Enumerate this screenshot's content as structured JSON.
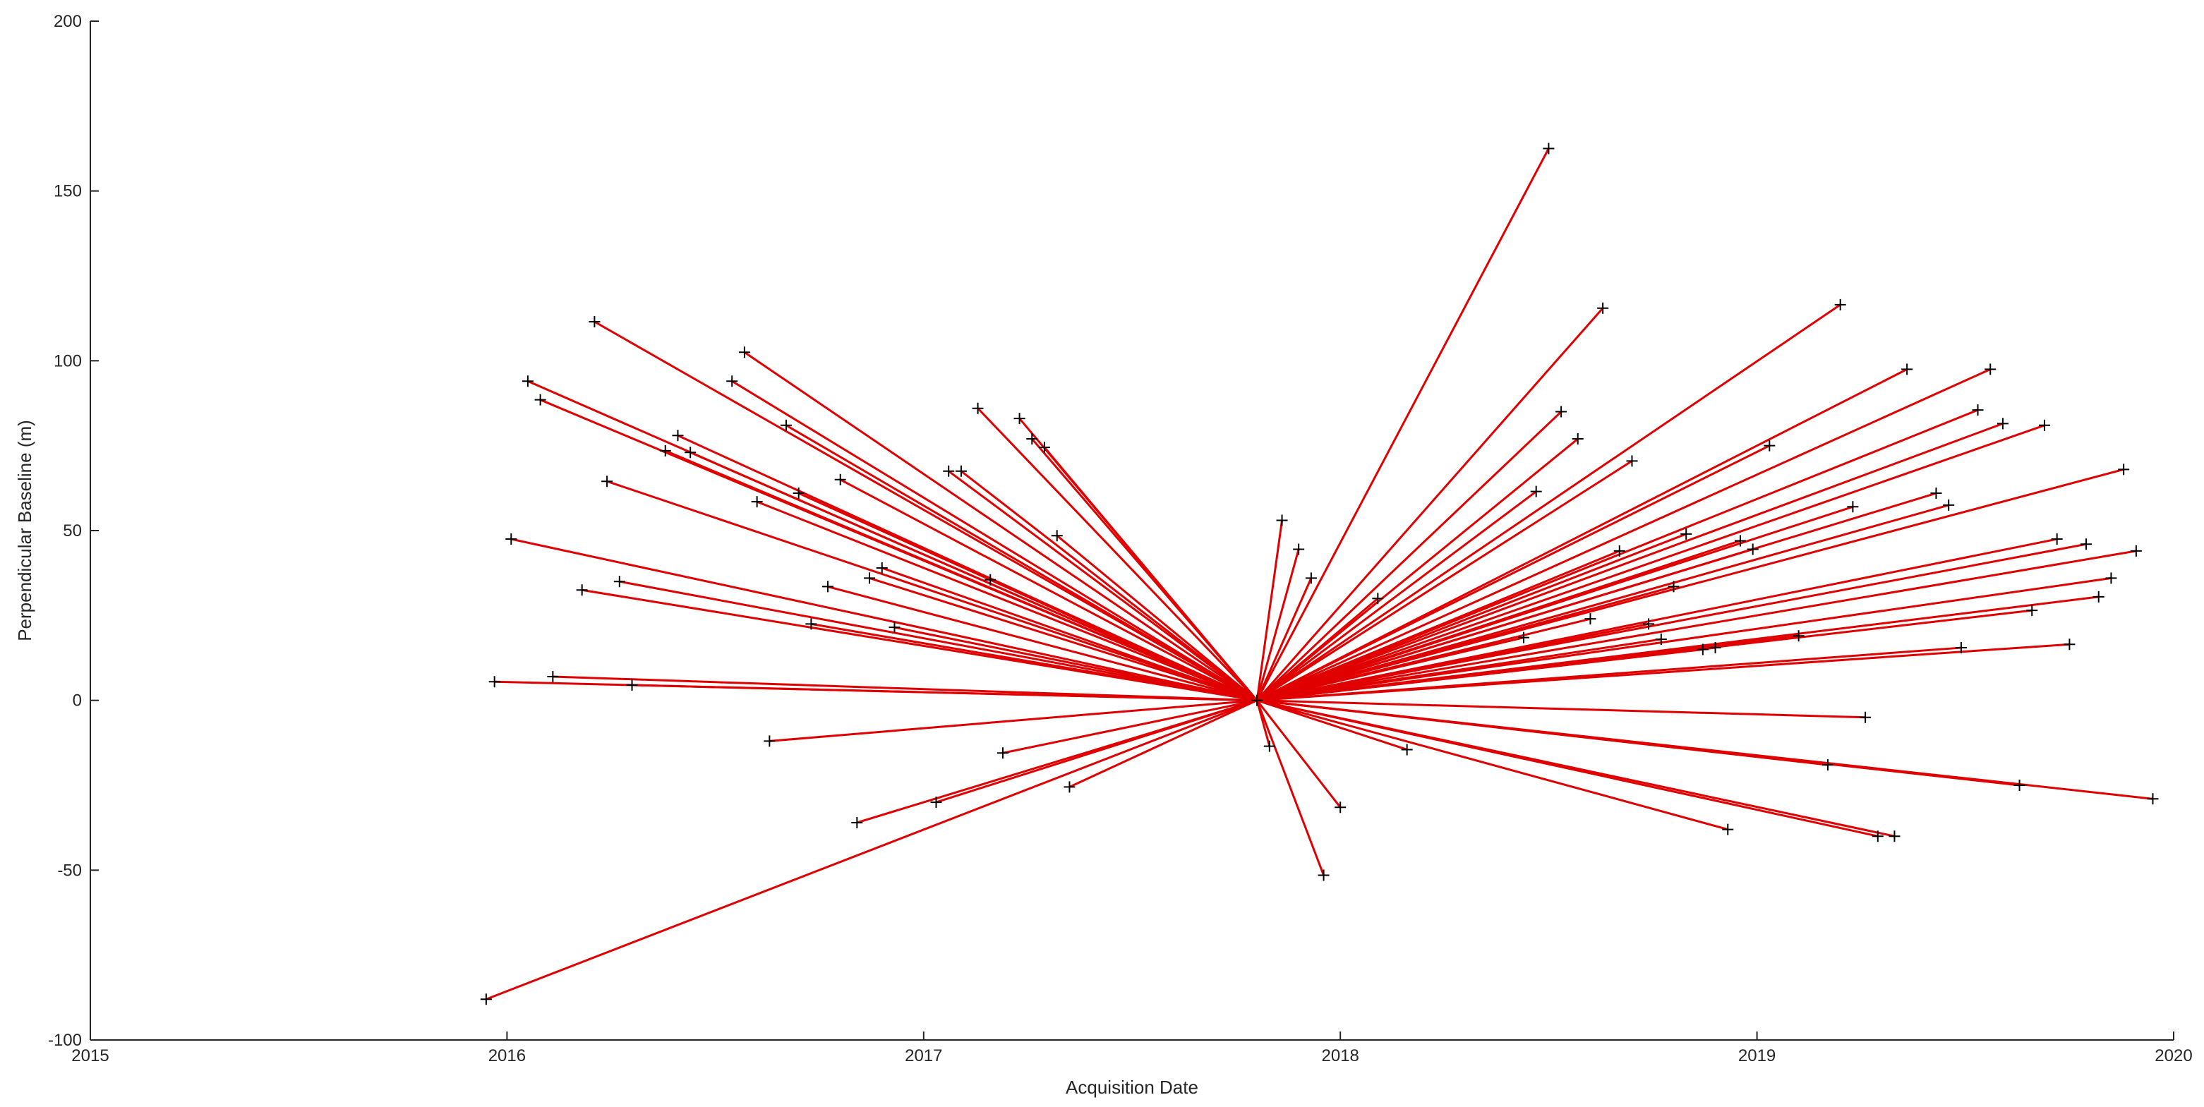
{
  "chart_data": {
    "type": "scatter",
    "title": "",
    "xlabel": "Acquisition Date",
    "ylabel": "Perpendicular Baseline (m)",
    "xlim": [
      2015,
      2020
    ],
    "ylim": [
      -100,
      200
    ],
    "xticks": [
      2015,
      2016,
      2017,
      2018,
      2019,
      2020
    ],
    "yticks": [
      -100,
      -50,
      0,
      50,
      100,
      150,
      200
    ],
    "grid": false,
    "colors": {
      "lines": "#e00000",
      "markers": "#000000",
      "axes": "#262626"
    },
    "reference": {
      "x": 2017.8,
      "y": 0
    },
    "points": [
      {
        "x": 2015.95,
        "y": -88
      },
      {
        "x": 2015.97,
        "y": 5.5
      },
      {
        "x": 2016.01,
        "y": 47.5
      },
      {
        "x": 2016.05,
        "y": 94
      },
      {
        "x": 2016.08,
        "y": 88.5
      },
      {
        "x": 2016.11,
        "y": 7
      },
      {
        "x": 2016.18,
        "y": 32.5
      },
      {
        "x": 2016.21,
        "y": 111.5
      },
      {
        "x": 2016.24,
        "y": 64.5
      },
      {
        "x": 2016.27,
        "y": 35
      },
      {
        "x": 2016.3,
        "y": 4.5
      },
      {
        "x": 2016.38,
        "y": 73.5
      },
      {
        "x": 2016.41,
        "y": 78
      },
      {
        "x": 2016.44,
        "y": 73
      },
      {
        "x": 2016.54,
        "y": 94
      },
      {
        "x": 2016.57,
        "y": 102.5
      },
      {
        "x": 2016.6,
        "y": 58.5
      },
      {
        "x": 2016.63,
        "y": -12
      },
      {
        "x": 2016.67,
        "y": 81
      },
      {
        "x": 2016.7,
        "y": 61
      },
      {
        "x": 2016.73,
        "y": 22.5
      },
      {
        "x": 2016.77,
        "y": 33.5
      },
      {
        "x": 2016.8,
        "y": 65
      },
      {
        "x": 2016.84,
        "y": -36
      },
      {
        "x": 2016.87,
        "y": 36
      },
      {
        "x": 2016.9,
        "y": 39
      },
      {
        "x": 2016.93,
        "y": 21.5
      },
      {
        "x": 2017.03,
        "y": -30
      },
      {
        "x": 2017.06,
        "y": 67.5
      },
      {
        "x": 2017.09,
        "y": 67.5
      },
      {
        "x": 2017.13,
        "y": 86
      },
      {
        "x": 2017.16,
        "y": 35.5
      },
      {
        "x": 2017.19,
        "y": -15.5
      },
      {
        "x": 2017.23,
        "y": 83
      },
      {
        "x": 2017.26,
        "y": 77
      },
      {
        "x": 2017.29,
        "y": 74.5
      },
      {
        "x": 2017.32,
        "y": 48.5
      },
      {
        "x": 2017.35,
        "y": -25.5
      },
      {
        "x": 2017.83,
        "y": -13.5
      },
      {
        "x": 2017.86,
        "y": 53
      },
      {
        "x": 2017.9,
        "y": 44.5
      },
      {
        "x": 2017.93,
        "y": 36
      },
      {
        "x": 2017.96,
        "y": -51.5
      },
      {
        "x": 2018.0,
        "y": -31.5
      },
      {
        "x": 2018.09,
        "y": 30
      },
      {
        "x": 2018.16,
        "y": -14.5
      },
      {
        "x": 2018.44,
        "y": 18.5
      },
      {
        "x": 2018.47,
        "y": 61.5
      },
      {
        "x": 2018.5,
        "y": 162.5
      },
      {
        "x": 2018.53,
        "y": 85
      },
      {
        "x": 2018.57,
        "y": 77
      },
      {
        "x": 2018.6,
        "y": 24
      },
      {
        "x": 2018.63,
        "y": 115.5
      },
      {
        "x": 2018.67,
        "y": 44
      },
      {
        "x": 2018.7,
        "y": 70.5
      },
      {
        "x": 2018.74,
        "y": 22.5
      },
      {
        "x": 2018.77,
        "y": 18
      },
      {
        "x": 2018.8,
        "y": 33.5
      },
      {
        "x": 2018.83,
        "y": 49
      },
      {
        "x": 2018.87,
        "y": 15
      },
      {
        "x": 2018.9,
        "y": 15.5
      },
      {
        "x": 2018.93,
        "y": -38
      },
      {
        "x": 2018.96,
        "y": 47
      },
      {
        "x": 2018.99,
        "y": 44.5
      },
      {
        "x": 2019.03,
        "y": 75
      },
      {
        "x": 2019.1,
        "y": 19
      },
      {
        "x": 2019.17,
        "y": -19
      },
      {
        "x": 2019.2,
        "y": 116.5
      },
      {
        "x": 2019.23,
        "y": 57
      },
      {
        "x": 2019.26,
        "y": -5
      },
      {
        "x": 2019.29,
        "y": -40
      },
      {
        "x": 2019.33,
        "y": -40
      },
      {
        "x": 2019.36,
        "y": 97.5
      },
      {
        "x": 2019.43,
        "y": 61
      },
      {
        "x": 2019.46,
        "y": 57.5
      },
      {
        "x": 2019.49,
        "y": 15.5
      },
      {
        "x": 2019.53,
        "y": 85.5
      },
      {
        "x": 2019.56,
        "y": 97.5
      },
      {
        "x": 2019.59,
        "y": 81.5
      },
      {
        "x": 2019.63,
        "y": -25
      },
      {
        "x": 2019.66,
        "y": 26.5
      },
      {
        "x": 2019.69,
        "y": 81
      },
      {
        "x": 2019.72,
        "y": 47.5
      },
      {
        "x": 2019.75,
        "y": 16.5
      },
      {
        "x": 2019.79,
        "y": 46
      },
      {
        "x": 2019.82,
        "y": 30.5
      },
      {
        "x": 2019.85,
        "y": 36
      },
      {
        "x": 2019.88,
        "y": 68
      },
      {
        "x": 2019.91,
        "y": 44
      },
      {
        "x": 2019.95,
        "y": -29
      }
    ]
  }
}
